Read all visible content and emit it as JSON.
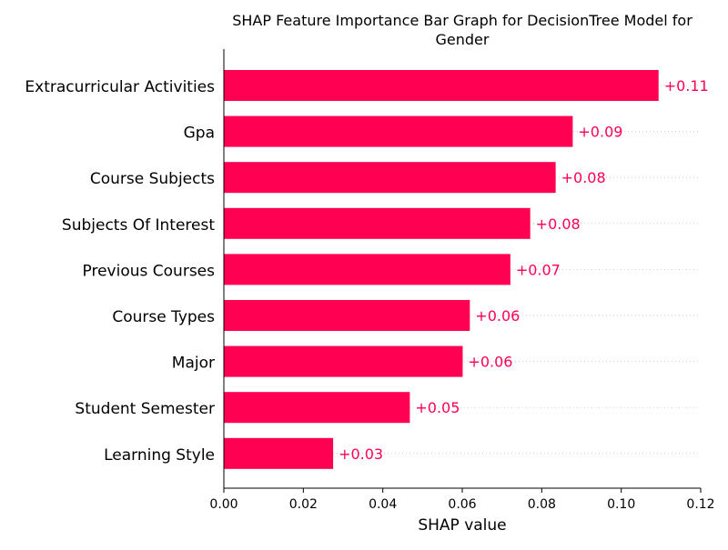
{
  "chart_data": {
    "type": "bar",
    "orientation": "horizontal",
    "title": "SHAP Feature Importance Bar Graph for DecisionTree Model for Gender",
    "title_lines": [
      "SHAP Feature Importance Bar Graph for DecisionTree Model for",
      "Gender"
    ],
    "xlabel": "SHAP value",
    "ylabel": "",
    "xlim": [
      0.0,
      0.12
    ],
    "xticks": [
      0.0,
      0.02,
      0.04,
      0.06,
      0.08,
      0.1,
      0.12
    ],
    "xtick_labels": [
      "0.00",
      "0.02",
      "0.04",
      "0.06",
      "0.08",
      "0.10",
      "0.12"
    ],
    "categories": [
      "Extracurricular Activities",
      "Gpa",
      "Course Subjects",
      "Subjects Of Interest",
      "Previous Courses",
      "Course Types",
      "Major",
      "Student Semester",
      "Learning Style"
    ],
    "values": [
      0.1094,
      0.0878,
      0.0835,
      0.0771,
      0.0721,
      0.0619,
      0.0601,
      0.0468,
      0.0275
    ],
    "data_labels": [
      "+0.11",
      "+0.09",
      "+0.08",
      "+0.08",
      "+0.07",
      "+0.06",
      "+0.06",
      "+0.05",
      "+0.03"
    ],
    "bar_color": "#ff0052",
    "label_color": "#ff0052",
    "grid": "dotted horizontal guide lines per feature",
    "legend": "none"
  }
}
